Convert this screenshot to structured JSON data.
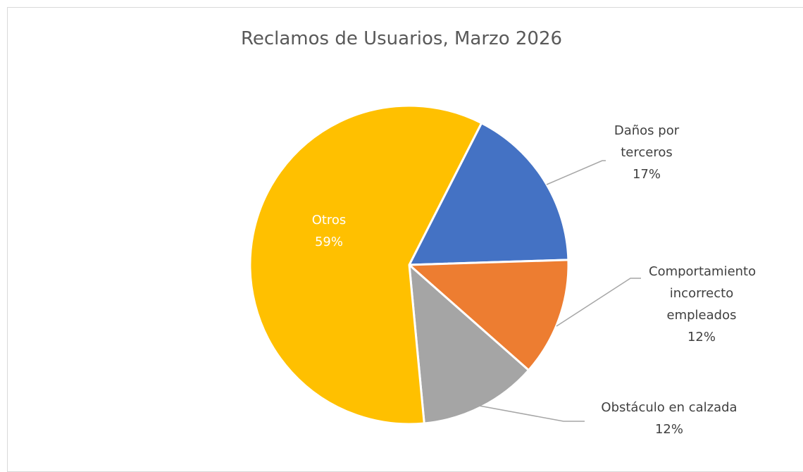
{
  "chart_data": {
    "type": "pie",
    "title": "Reclamos de Usuarios, Marzo 2026",
    "categories": [
      "Daños por terceros",
      "Comportamiento incorrecto empleados",
      "Obstáculo en calzada",
      "Otros"
    ],
    "values": [
      17,
      12,
      12,
      59
    ],
    "value_labels": [
      "17%",
      "12%",
      "12%",
      "59%"
    ],
    "colors": [
      "#4472c4",
      "#ed7d31",
      "#a5a5a5",
      "#ffc000"
    ]
  }
}
